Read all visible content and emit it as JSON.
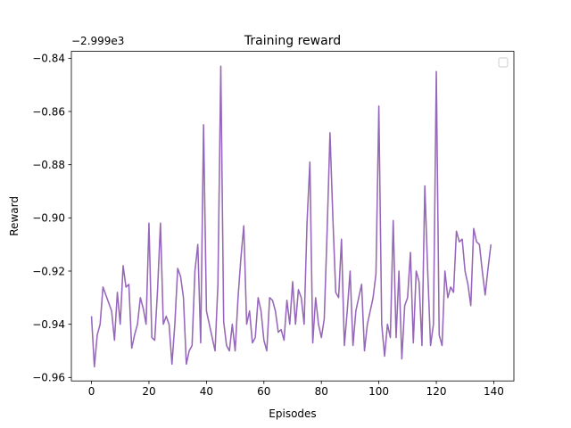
{
  "chart_data": {
    "type": "line",
    "title": "Training reward",
    "xlabel": "Episodes",
    "ylabel": "Reward",
    "offset_label": "−2.999e3",
    "xlim": [
      -7,
      147
    ],
    "ylim": [
      -0.9613,
      -0.8374
    ],
    "xticks": [
      0,
      20,
      40,
      60,
      80,
      100,
      120,
      140
    ],
    "xtick_labels": [
      "0",
      "20",
      "40",
      "60",
      "80",
      "100",
      "120",
      "140"
    ],
    "yticks": [
      -0.96,
      -0.94,
      -0.92,
      -0.9,
      -0.88,
      -0.86,
      -0.84
    ],
    "ytick_labels": [
      "−0.96",
      "−0.94",
      "−0.92",
      "−0.90",
      "−0.88",
      "−0.86",
      "−0.84"
    ],
    "grid": false,
    "legend": {
      "location": "top-right",
      "entries": []
    },
    "colors": {
      "line": "#9467bd",
      "underlay": "#e26a5a",
      "axes": "#000000",
      "background": "#ffffff"
    },
    "series": [
      {
        "x": [
          0,
          1,
          2,
          3,
          4,
          5,
          6,
          7,
          8,
          9,
          10,
          11,
          12,
          13,
          14,
          15,
          16,
          17,
          18,
          19,
          20,
          21,
          22,
          23,
          24,
          25,
          26,
          27,
          28,
          29,
          30,
          31,
          32,
          33,
          34,
          35,
          36,
          37,
          38,
          39,
          40,
          41,
          42,
          43,
          44,
          45,
          46,
          47,
          48,
          49,
          50,
          51,
          52,
          53,
          54,
          55,
          56,
          57,
          58,
          59,
          60,
          61,
          62,
          63,
          64,
          65,
          66,
          67,
          68,
          69,
          70,
          71,
          72,
          73,
          74,
          75,
          76,
          77,
          78,
          79,
          80,
          81,
          82,
          83,
          84,
          85,
          86,
          87,
          88,
          89,
          90,
          91,
          92,
          93,
          94,
          95,
          96,
          97,
          98,
          99,
          100,
          101,
          102,
          103,
          104,
          105,
          106,
          107,
          108,
          109,
          110,
          111,
          112,
          113,
          114,
          115,
          116,
          117,
          118,
          119,
          120,
          121,
          122,
          123,
          124,
          125,
          126,
          127,
          128,
          129,
          130,
          131,
          132,
          133,
          134,
          135,
          136,
          137,
          138,
          139
        ],
        "values": [
          -0.937,
          -0.956,
          -0.944,
          -0.94,
          -0.926,
          -0.929,
          -0.932,
          -0.935,
          -0.946,
          -0.928,
          -0.94,
          -0.918,
          -0.926,
          -0.925,
          -0.949,
          -0.944,
          -0.94,
          -0.93,
          -0.934,
          -0.94,
          -0.902,
          -0.945,
          -0.946,
          -0.927,
          -0.902,
          -0.94,
          -0.937,
          -0.94,
          -0.955,
          -0.94,
          -0.919,
          -0.922,
          -0.93,
          -0.955,
          -0.95,
          -0.948,
          -0.92,
          -0.91,
          -0.947,
          -0.865,
          -0.935,
          -0.94,
          -0.945,
          -0.95,
          -0.925,
          -0.843,
          -0.939,
          -0.948,
          -0.95,
          -0.94,
          -0.95,
          -0.93,
          -0.915,
          -0.903,
          -0.94,
          -0.935,
          -0.947,
          -0.945,
          -0.93,
          -0.935,
          -0.946,
          -0.95,
          -0.93,
          -0.931,
          -0.935,
          -0.943,
          -0.942,
          -0.946,
          -0.931,
          -0.94,
          -0.924,
          -0.94,
          -0.927,
          -0.93,
          -0.94,
          -0.902,
          -0.879,
          -0.947,
          -0.93,
          -0.94,
          -0.945,
          -0.938,
          -0.905,
          -0.868,
          -0.9,
          -0.928,
          -0.93,
          -0.908,
          -0.948,
          -0.935,
          -0.92,
          -0.948,
          -0.935,
          -0.93,
          -0.925,
          -0.95,
          -0.94,
          -0.935,
          -0.93,
          -0.921,
          -0.858,
          -0.94,
          -0.952,
          -0.94,
          -0.945,
          -0.901,
          -0.945,
          -0.92,
          -0.953,
          -0.933,
          -0.93,
          -0.913,
          -0.947,
          -0.92,
          -0.924,
          -0.948,
          -0.888,
          -0.92,
          -0.948,
          -0.94,
          -0.845,
          -0.944,
          -0.948,
          -0.92,
          -0.93,
          -0.926,
          -0.928,
          -0.905,
          -0.909,
          -0.908,
          -0.92,
          -0.925,
          -0.933,
          -0.904,
          -0.909,
          -0.91,
          -0.92,
          -0.929,
          -0.919,
          -0.91
        ]
      }
    ]
  }
}
